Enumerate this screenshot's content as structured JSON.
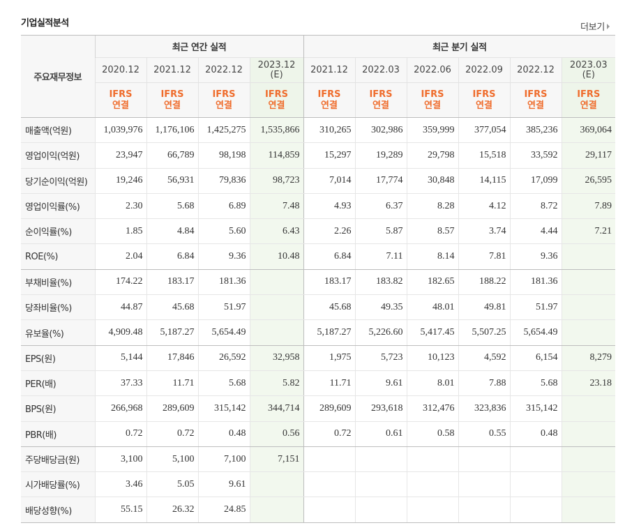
{
  "page_title": "기업실적분석",
  "more_label": "더보기",
  "header": {
    "corner_label": "주요재무정보",
    "annual_group": "최근 연간 실적",
    "quarter_group": "최근 분기 실적",
    "periods": [
      {
        "line1": "2020.12",
        "line2": "",
        "estimate": false
      },
      {
        "line1": "2021.12",
        "line2": "",
        "estimate": false
      },
      {
        "line1": "2022.12",
        "line2": "",
        "estimate": false
      },
      {
        "line1": "2023.12",
        "line2": "(E)",
        "estimate": true
      },
      {
        "line1": "2021.12",
        "line2": "",
        "estimate": false
      },
      {
        "line1": "2022.03",
        "line2": "",
        "estimate": false
      },
      {
        "line1": "2022.06",
        "line2": "",
        "estimate": false
      },
      {
        "line1": "2022.09",
        "line2": "",
        "estimate": false
      },
      {
        "line1": "2022.12",
        "line2": "",
        "estimate": false
      },
      {
        "line1": "2023.03",
        "line2": "(E)",
        "estimate": true
      }
    ],
    "ifrs_line1": "IFRS",
    "ifrs_line2": "연결"
  },
  "rows": [
    {
      "label": "매출액(억원)",
      "values": [
        "1,039,976",
        "1,176,106",
        "1,425,275",
        "1,535,866",
        "310,265",
        "302,986",
        "359,999",
        "377,054",
        "385,236",
        "369,064"
      ]
    },
    {
      "label": "영업이익(억원)",
      "values": [
        "23,947",
        "66,789",
        "98,198",
        "114,859",
        "15,297",
        "19,289",
        "29,798",
        "15,518",
        "33,592",
        "29,117"
      ]
    },
    {
      "label": "당기순이익(억원)",
      "values": [
        "19,246",
        "56,931",
        "79,836",
        "98,723",
        "7,014",
        "17,774",
        "30,848",
        "14,115",
        "17,099",
        "26,595"
      ]
    },
    {
      "label": "영업이익률(%)",
      "values": [
        "2.30",
        "5.68",
        "6.89",
        "7.48",
        "4.93",
        "6.37",
        "8.28",
        "4.12",
        "8.72",
        "7.89"
      ]
    },
    {
      "label": "순이익률(%)",
      "values": [
        "1.85",
        "4.84",
        "5.60",
        "6.43",
        "2.26",
        "5.87",
        "8.57",
        "3.74",
        "4.44",
        "7.21"
      ]
    },
    {
      "label": "ROE(%)",
      "values": [
        "2.04",
        "6.84",
        "9.36",
        "10.48",
        "6.84",
        "7.11",
        "8.14",
        "7.81",
        "9.36",
        ""
      ]
    },
    {
      "label": "부채비율(%)",
      "values": [
        "174.22",
        "183.17",
        "181.36",
        "",
        "183.17",
        "183.82",
        "182.65",
        "188.22",
        "181.36",
        ""
      ]
    },
    {
      "label": "당좌비율(%)",
      "values": [
        "44.87",
        "45.68",
        "51.97",
        "",
        "45.68",
        "49.35",
        "48.01",
        "49.81",
        "51.97",
        ""
      ]
    },
    {
      "label": "유보율(%)",
      "values": [
        "4,909.48",
        "5,187.27",
        "5,654.49",
        "",
        "5,187.27",
        "5,226.60",
        "5,417.45",
        "5,507.25",
        "5,654.49",
        ""
      ]
    },
    {
      "label": "EPS(원)",
      "values": [
        "5,144",
        "17,846",
        "26,592",
        "32,958",
        "1,975",
        "5,723",
        "10,123",
        "4,592",
        "6,154",
        "8,279"
      ]
    },
    {
      "label": "PER(배)",
      "values": [
        "37.33",
        "11.71",
        "5.68",
        "5.82",
        "11.71",
        "9.61",
        "8.01",
        "7.88",
        "5.68",
        "23.18"
      ]
    },
    {
      "label": "BPS(원)",
      "values": [
        "266,968",
        "289,609",
        "315,142",
        "344,714",
        "289,609",
        "293,618",
        "312,476",
        "323,836",
        "315,142",
        ""
      ]
    },
    {
      "label": "PBR(배)",
      "values": [
        "0.72",
        "0.72",
        "0.48",
        "0.56",
        "0.72",
        "0.61",
        "0.58",
        "0.55",
        "0.48",
        ""
      ]
    },
    {
      "label": "주당배당금(원)",
      "values": [
        "3,100",
        "5,100",
        "7,100",
        "7,151",
        "",
        "",
        "",
        "",
        "",
        ""
      ]
    },
    {
      "label": "시가배당률(%)",
      "values": [
        "3.46",
        "5.05",
        "9.61",
        "",
        "",
        "",
        "",
        "",
        "",
        ""
      ]
    },
    {
      "label": "배당성향(%)",
      "values": [
        "55.15",
        "26.32",
        "24.85",
        "",
        "",
        "",
        "",
        "",
        "",
        ""
      ]
    }
  ]
}
